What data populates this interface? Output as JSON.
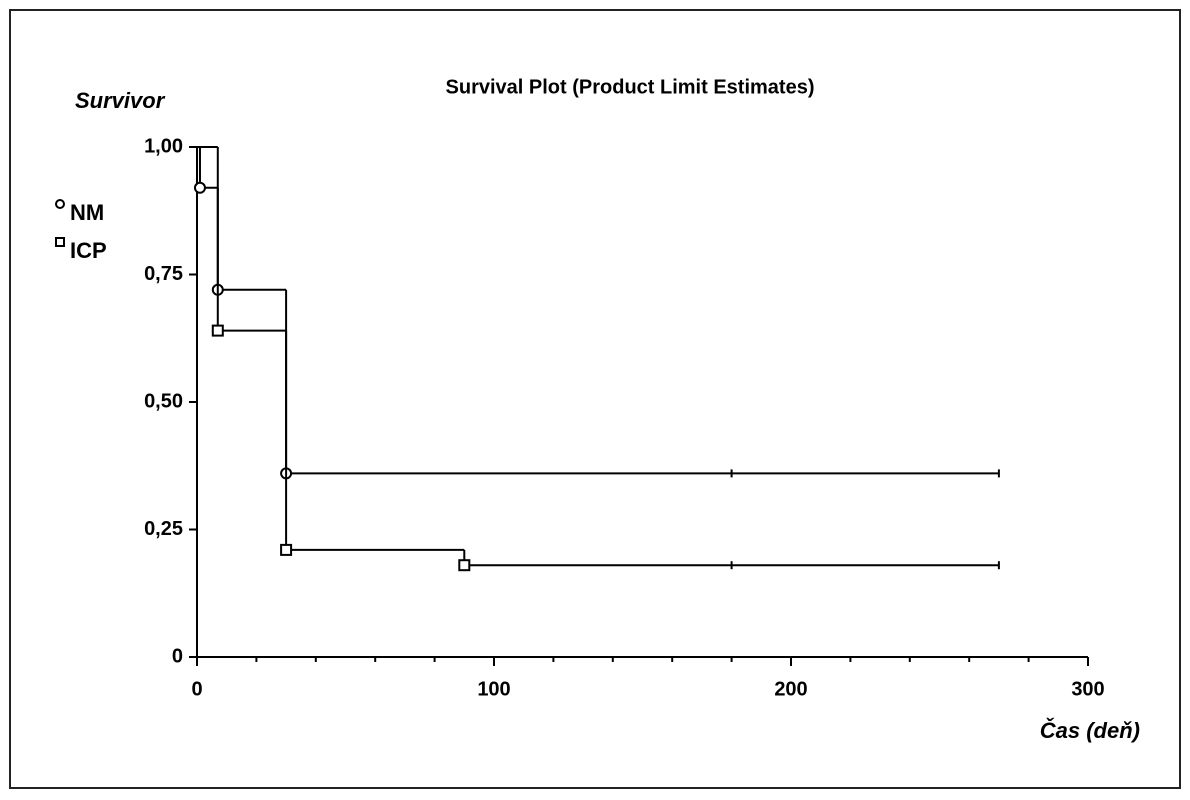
{
  "chart_data": {
    "type": "step",
    "title": "Survival Plot (Product Limit Estimates)",
    "ylabel": "Survivor",
    "xlabel": "Čas (deň)",
    "xlim": [
      0,
      300
    ],
    "xticks": [
      0,
      100,
      200,
      300
    ],
    "xminorticks": [
      20,
      40,
      60,
      80,
      120,
      140,
      160,
      180,
      220,
      240,
      260,
      280
    ],
    "ylim": [
      0,
      1
    ],
    "yticks": [
      0,
      {
        "value": 0.25,
        "label": "0,25"
      },
      {
        "value": 0.5,
        "label": "0,50"
      },
      {
        "value": 0.75,
        "label": "0,75"
      },
      {
        "value": 1,
        "label": "1,00"
      }
    ],
    "legend": "upper left",
    "series": [
      {
        "name": "NM",
        "marker": "circle",
        "color": "#000000",
        "x": [
          0,
          1,
          7,
          30
        ],
        "values": [
          1,
          0.92,
          0.72,
          0.36
        ],
        "censored": [
          180,
          270
        ]
      },
      {
        "name": "ICP",
        "marker": "square",
        "color": "#000000",
        "x": [
          0,
          7,
          30,
          90
        ],
        "values": [
          1,
          0.64,
          0.21,
          0.18
        ],
        "censored": [
          180,
          270
        ]
      }
    ]
  }
}
